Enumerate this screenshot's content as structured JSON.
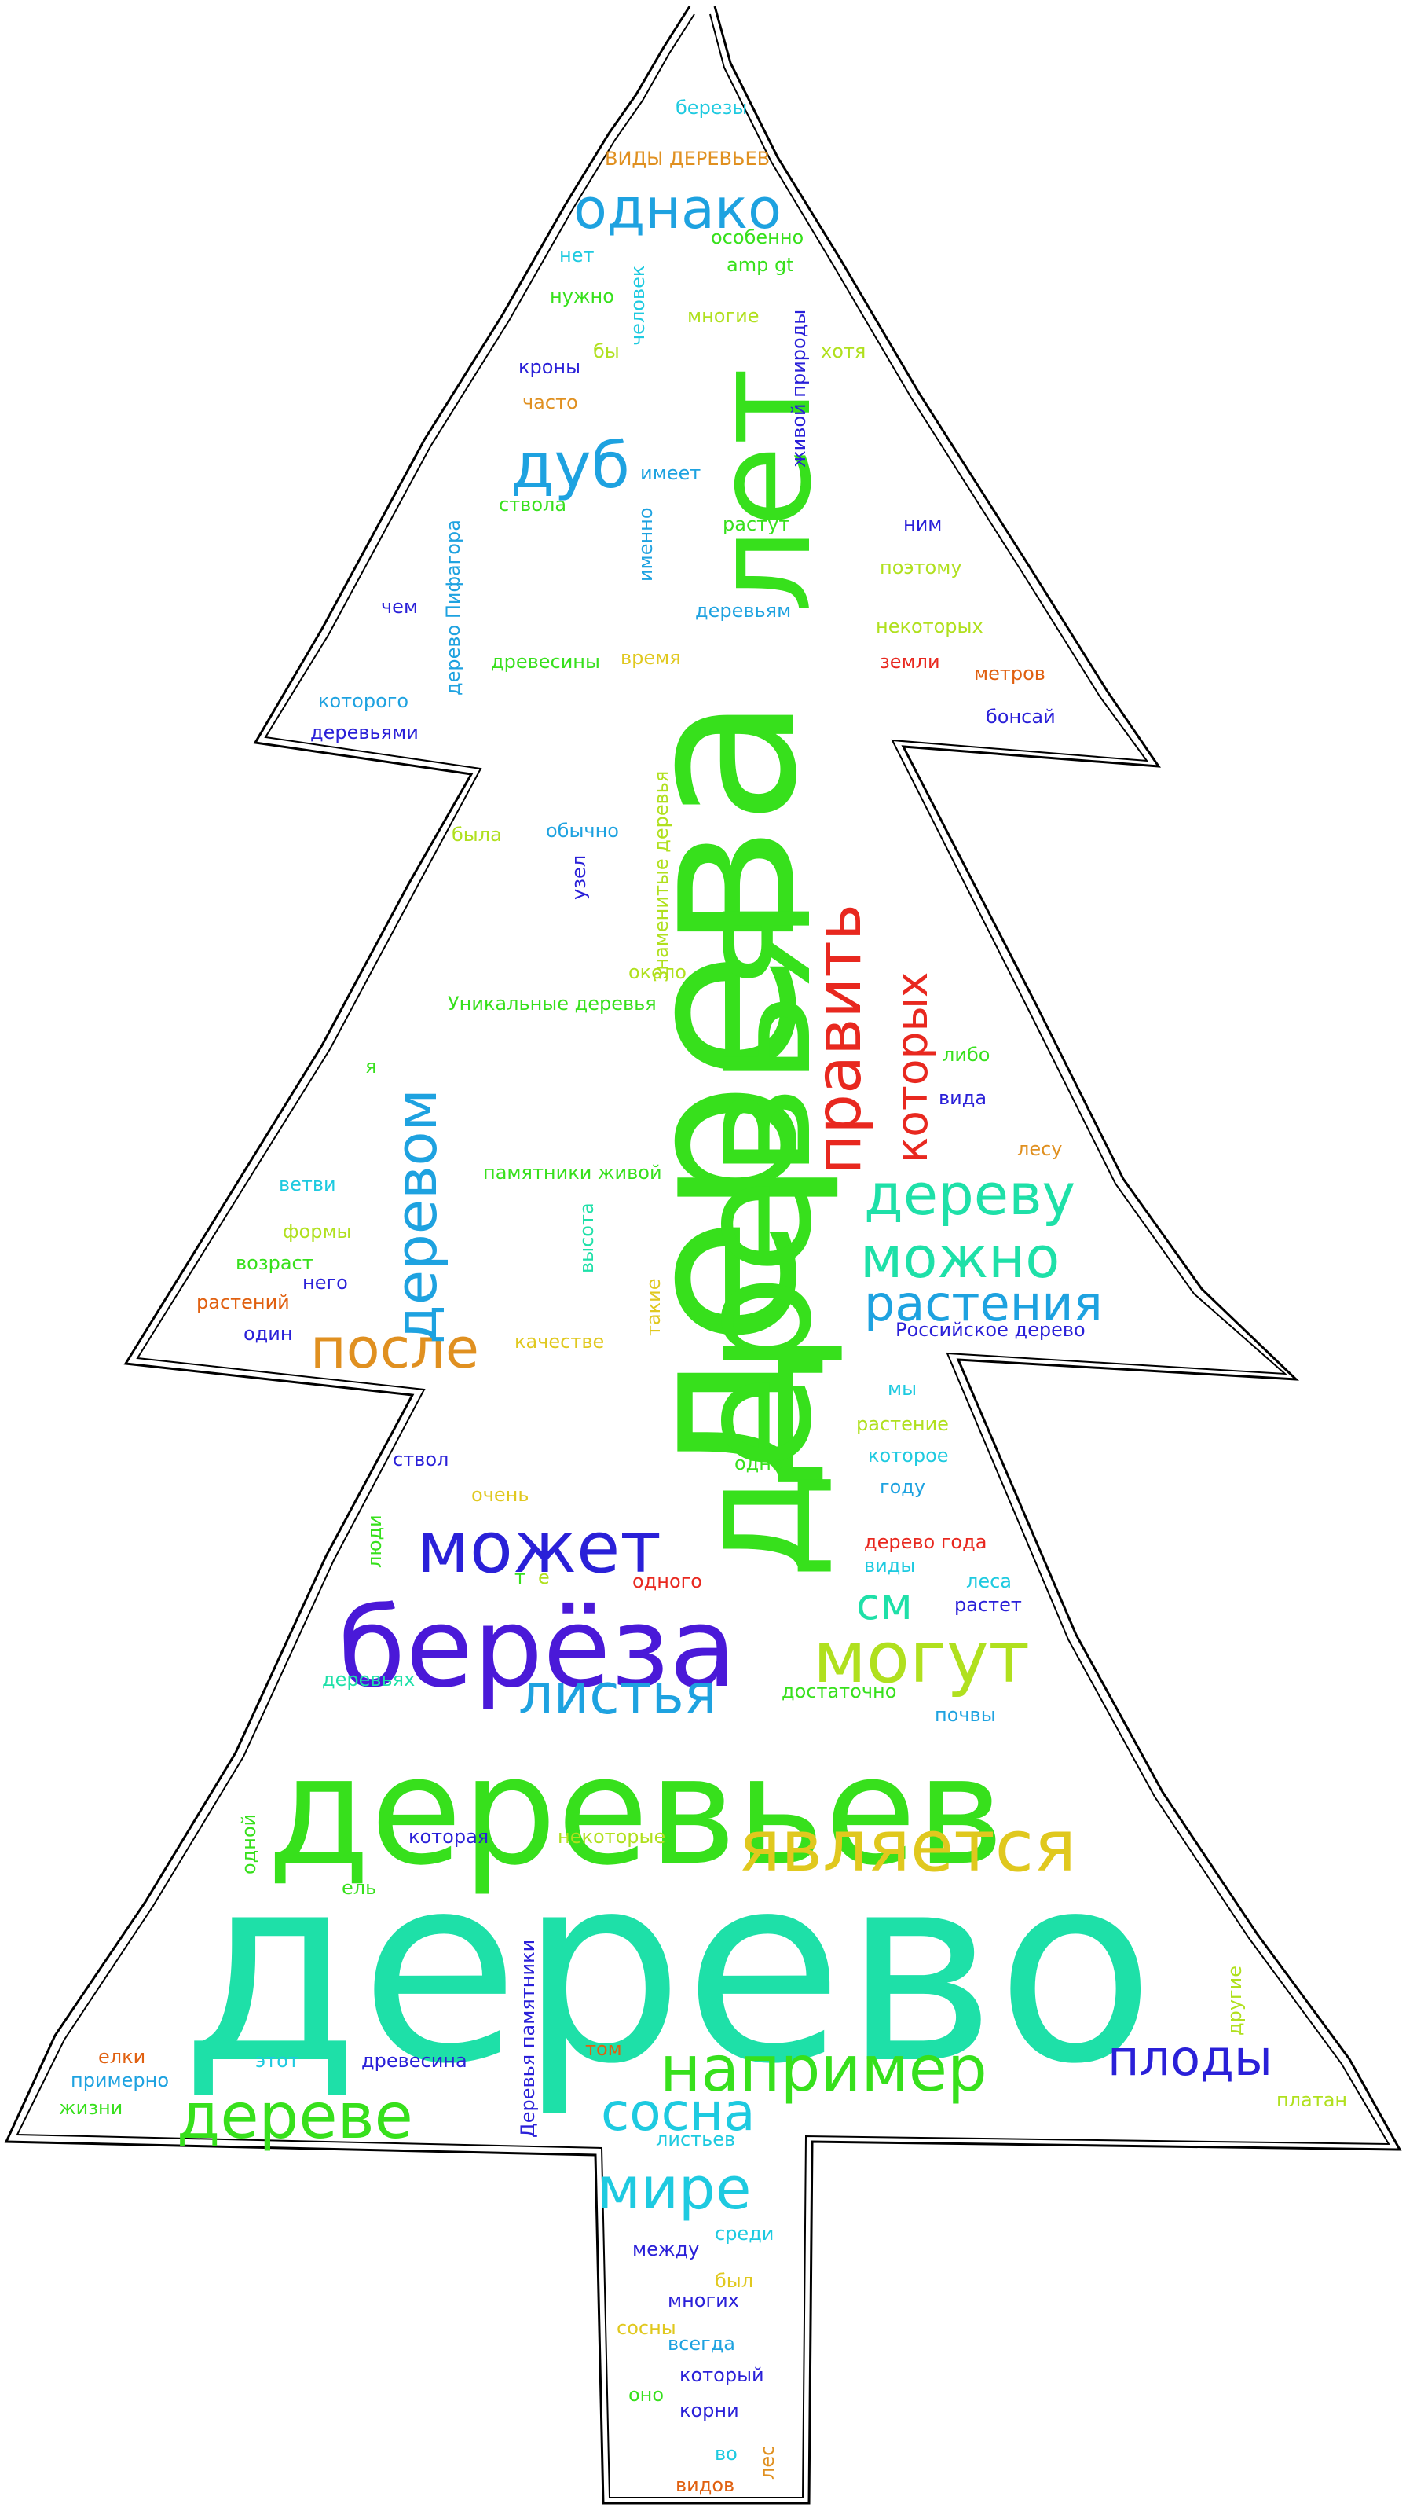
{
  "palette": {
    "green": "#37e01c",
    "teal": "#1ee0a8",
    "red": "#e8281f",
    "blue": "#2a20d8",
    "violet": "#4a19d8",
    "sky": "#1ea2e0",
    "yellow": "#e0c81e",
    "orange": "#e09020",
    "lime": "#b0e01e",
    "cyan": "#1ecae0",
    "darkorange": "#e06010",
    "outline": "#000000"
  },
  "words": [
    "дерево",
    "дерева",
    "деревья",
    "деревьев",
    "лет",
    "берёза",
    "может",
    "могут",
    "является",
    "например",
    "дереве",
    "после",
    "деревом",
    "дереву",
    "можно",
    "растения",
    "править",
    "которых",
    "однако",
    "дуб",
    "плоды",
    "сосна",
    "мире",
    "листья",
    "см",
    "березы",
    "ВИДЫ ДЕРЕВЬЕВ",
    "особенно",
    "amp gt",
    "нет",
    "человек",
    "многие",
    "нужно",
    "живой природы",
    "хотя",
    "бы",
    "кроны",
    "часто",
    "имеет",
    "ствола",
    "именно",
    "растут",
    "ним",
    "поэтому",
    "чем",
    "дерево Пифагора",
    "деревьям",
    "некоторых",
    "древесины",
    "время",
    "земли",
    "метров",
    "которого",
    "бонсай",
    "деревьями",
    "Знаменитые деревья",
    "была",
    "обычно",
    "узел",
    "около",
    "Уникальные деревья",
    "либо",
    "я",
    "вида",
    "лесу",
    "памятники живой",
    "ветви",
    "формы",
    "высота",
    "возраст",
    "него",
    "растений",
    "один",
    "такие",
    "качестве",
    "Российское дерево",
    "мы",
    "растение",
    "ствол",
    "одно",
    "которое",
    "очень",
    "году",
    "люди",
    "т",
    "е",
    "дерево года",
    "одного",
    "виды",
    "растет",
    "леса",
    "деревьях",
    "достаточно",
    "почвы",
    "одной",
    "которая",
    "некоторые",
    "ель",
    "другие",
    "Деревья памятники",
    "елки",
    "этот",
    "древесина",
    "том",
    "платан",
    "примерно",
    "жизни",
    "листьев",
    "среди",
    "между",
    "был",
    "многих",
    "сосны",
    "всегда",
    "который",
    "оно",
    "корни",
    "во",
    "лес",
    "видов"
  ]
}
